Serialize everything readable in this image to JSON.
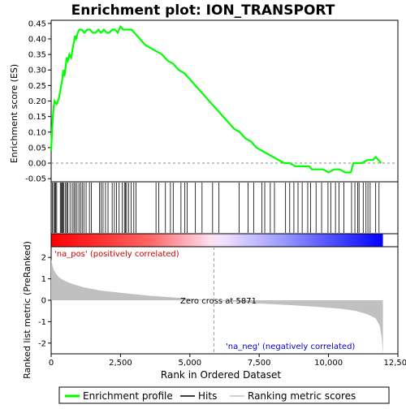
{
  "chart_data": {
    "type": "line",
    "title": "Enrichment plot: ION_TRANSPORT",
    "es_panel": {
      "ylabel": "Enrichment score (ES)",
      "ylim": [
        -0.06,
        0.46
      ],
      "yticks": [
        "-0.05",
        "0.00",
        "0.05",
        "0.10",
        "0.15",
        "0.20",
        "0.25",
        "0.30",
        "0.35",
        "0.40",
        "0.45"
      ],
      "ytick_values": [
        -0.05,
        0.0,
        0.05,
        0.1,
        0.15,
        0.2,
        0.25,
        0.3,
        0.35,
        0.4,
        0.45
      ],
      "series_name": "Enrichment profile",
      "line_color": "#00ff00",
      "x": [
        0,
        40,
        80,
        120,
        200,
        280,
        360,
        400,
        440,
        480,
        520,
        560,
        600,
        660,
        720,
        800,
        860,
        900,
        960,
        1020,
        1100,
        1200,
        1300,
        1400,
        1500,
        1600,
        1700,
        1800,
        1900,
        2000,
        2100,
        2200,
        2300,
        2400,
        2500,
        2600,
        2700,
        2800,
        2900,
        3000,
        3200,
        3400,
        3600,
        3800,
        4000,
        4200,
        4400,
        4600,
        4800,
        5000,
        5200,
        5400,
        5600,
        5800,
        6000,
        6200,
        6400,
        6600,
        6800,
        7000,
        7200,
        7400,
        7600,
        7800,
        8000,
        8200,
        8400,
        8600,
        8800,
        9000,
        9200,
        9300,
        9400,
        9600,
        9800,
        10000,
        10200,
        10400,
        10600,
        10800,
        10900,
        11000,
        11200,
        11400,
        11500,
        11600,
        11700,
        11800,
        11900
      ],
      "y": [
        0.04,
        0.12,
        0.17,
        0.2,
        0.19,
        0.21,
        0.25,
        0.27,
        0.3,
        0.28,
        0.31,
        0.34,
        0.33,
        0.35,
        0.34,
        0.38,
        0.41,
        0.4,
        0.42,
        0.43,
        0.43,
        0.42,
        0.43,
        0.43,
        0.42,
        0.42,
        0.43,
        0.42,
        0.43,
        0.42,
        0.42,
        0.43,
        0.43,
        0.42,
        0.44,
        0.43,
        0.43,
        0.43,
        0.43,
        0.42,
        0.4,
        0.38,
        0.37,
        0.36,
        0.35,
        0.33,
        0.32,
        0.3,
        0.29,
        0.27,
        0.25,
        0.23,
        0.21,
        0.19,
        0.17,
        0.15,
        0.13,
        0.11,
        0.1,
        0.08,
        0.07,
        0.05,
        0.04,
        0.03,
        0.02,
        0.01,
        0.0,
        0.0,
        -0.01,
        -0.01,
        -0.01,
        -0.01,
        -0.02,
        -0.02,
        -0.02,
        -0.03,
        -0.02,
        -0.02,
        -0.03,
        -0.03,
        0.0,
        0.0,
        0.0,
        0.01,
        0.01,
        0.01,
        0.02,
        0.01,
        0.0
      ]
    },
    "hits": {
      "series_name": "Hits",
      "positions": [
        40,
        90,
        130,
        160,
        200,
        330,
        360,
        390,
        420,
        460,
        520,
        560,
        600,
        680,
        760,
        820,
        870,
        930,
        1000,
        1060,
        1120,
        1180,
        1260,
        1380,
        1450,
        1740,
        1800,
        1870,
        1960,
        2050,
        2200,
        2280,
        2360,
        2450,
        2560,
        2640,
        2680,
        2720,
        2790,
        2880,
        2980,
        3060,
        3780,
        3880,
        4120,
        4300,
        4400,
        4680,
        4820,
        4900,
        5200,
        5440,
        5820,
        6050,
        6780,
        7100,
        7300,
        7600,
        7700,
        7900,
        8050,
        8450,
        8600,
        8750,
        8900,
        9050,
        9250,
        9350,
        9550,
        9750,
        9980,
        10080,
        10250,
        10380,
        10550,
        10830,
        10950,
        11050,
        11100,
        11250,
        11350,
        11420,
        11500,
        11700,
        11820
      ]
    },
    "gradient_bar": {
      "left_color": "#ff0000",
      "right_color": "#0000ff"
    },
    "metric_panel": {
      "ylabel": "Ranked list metric (PreRanked)",
      "ylim": [
        -2.5,
        2.5
      ],
      "yticks": [
        "-2",
        "-1",
        "0",
        "1",
        "2"
      ],
      "ytick_values": [
        -2,
        -1,
        0,
        1,
        2
      ],
      "series_name": "Ranking metric scores",
      "fill_color": "#c0c0c0",
      "pos_label": "'na_pos' (positively correlated)",
      "neg_label": "'na_neg' (negatively correlated)",
      "zero_cross_label": "Zero cross at 5871",
      "zero_cross": 5871,
      "x": [
        0,
        50,
        100,
        200,
        300,
        500,
        800,
        1200,
        1800,
        2500,
        3500,
        4500,
        5200,
        5871,
        6500,
        7500,
        8500,
        9500,
        10500,
        11000,
        11400,
        11700,
        11850,
        11920,
        11960
      ],
      "y": [
        1.9,
        1.6,
        1.4,
        1.2,
        1.05,
        0.9,
        0.75,
        0.6,
        0.45,
        0.35,
        0.22,
        0.12,
        0.05,
        0.0,
        -0.06,
        -0.15,
        -0.22,
        -0.3,
        -0.4,
        -0.5,
        -0.65,
        -0.85,
        -1.2,
        -1.8,
        -2.5
      ]
    },
    "x_axis": {
      "xlabel": "Rank in Ordered Dataset",
      "xlim": [
        0,
        12500
      ],
      "xticks": [
        "0",
        "2,500",
        "5,000",
        "7,500",
        "10,000",
        "12,500"
      ],
      "xtick_values": [
        0,
        2500,
        5000,
        7500,
        10000,
        12500
      ],
      "data_max": 11960
    },
    "legend": {
      "placement": "bottom",
      "entries": [
        {
          "label": "Enrichment profile",
          "color": "#00ff00"
        },
        {
          "label": "Hits",
          "color": "#000000"
        },
        {
          "label": "Ranking metric scores",
          "color": "#c0c0c0"
        }
      ]
    }
  }
}
